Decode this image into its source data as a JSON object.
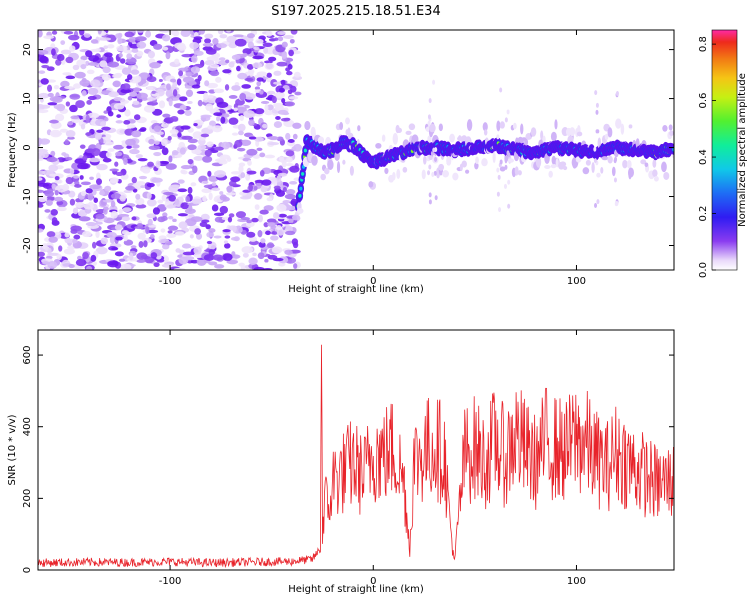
{
  "title": "S197.2025.215.18.51.E34",
  "chart_data": [
    {
      "type": "heatmap",
      "xlabel": "Height of straight line (km)",
      "ylabel": "Frequency (Hz)",
      "xlim": [
        -165,
        148
      ],
      "ylim": [
        -25,
        24
      ],
      "xticks": [
        -100,
        0,
        100
      ],
      "yticks": [
        -20,
        -10,
        0,
        10,
        20
      ],
      "colorbar": {
        "label": "Normalized spectral amplitude",
        "range": [
          0,
          0.85
        ],
        "ticks": [
          0.0,
          0.2,
          0.4,
          0.6,
          0.8
        ]
      },
      "noise_region": {
        "x_start": -165,
        "x_end": -37
      },
      "signal_track": {
        "x": [
          -37,
          -35,
          -33,
          -30,
          -25,
          -20,
          -15,
          -10,
          -5,
          0,
          5,
          10,
          15,
          20,
          30,
          40,
          50,
          60,
          70,
          80,
          90,
          100,
          110,
          120,
          130,
          140,
          148
        ],
        "freq": [
          -12,
          -6,
          1.5,
          0.5,
          -1,
          -0.5,
          1,
          0.5,
          -1.5,
          -3,
          -2.5,
          -1.5,
          -1,
          0,
          0,
          -0.5,
          0,
          0.5,
          -0.5,
          -1,
          0,
          -0.5,
          -1,
          0,
          -0.5,
          -1,
          0
        ]
      }
    },
    {
      "type": "line",
      "xlabel": "Height of straight line (km)",
      "ylabel": "SNR (10 * v/v)",
      "xlim": [
        -165,
        148
      ],
      "ylim": [
        0,
        670
      ],
      "xticks": [
        -100,
        0,
        100
      ],
      "yticks": [
        0,
        200,
        400,
        600
      ],
      "color": "#e8232a",
      "series": [
        {
          "x": [
            -165,
            -140,
            -120,
            -100,
            -80,
            -60,
            -40,
            -30,
            -26,
            -25.5,
            -25,
            -24,
            -22,
            -20,
            -15,
            -10,
            -5,
            0,
            5,
            10,
            15,
            18,
            20,
            25,
            30,
            35,
            38,
            40,
            42,
            45,
            50,
            55,
            60,
            65,
            70,
            75,
            80,
            85,
            90,
            95,
            100,
            105,
            110,
            115,
            120,
            125,
            130,
            135,
            140,
            148
          ],
          "values": [
            20,
            22,
            21,
            23,
            20,
            22,
            24,
            30,
            60,
            665,
            90,
            210,
            160,
            250,
            270,
            300,
            260,
            330,
            320,
            340,
            250,
            60,
            300,
            330,
            350,
            320,
            120,
            20,
            150,
            320,
            340,
            300,
            360,
            310,
            380,
            330,
            300,
            360,
            340,
            330,
            370,
            350,
            310,
            290,
            330,
            300,
            280,
            260,
            240,
            250
          ]
        }
      ]
    }
  ]
}
